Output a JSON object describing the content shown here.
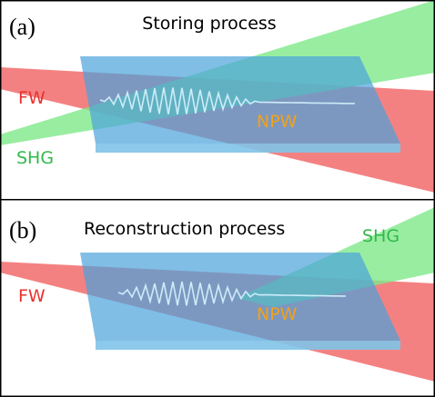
{
  "panels": [
    {
      "label": "(a)",
      "title": "Storing process",
      "fw": "FW",
      "shg": "SHG",
      "medium": "NPW"
    },
    {
      "label": "(b)",
      "title": "Reconstruction process",
      "fw": "FW",
      "shg": "SHG",
      "medium": "NPW"
    }
  ]
}
